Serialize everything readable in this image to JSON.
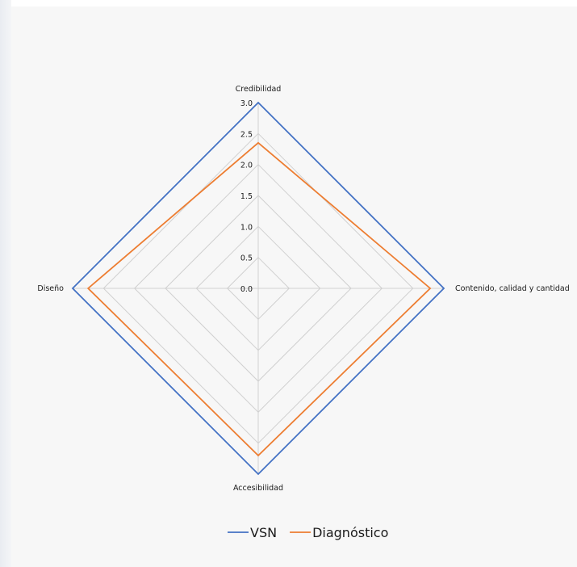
{
  "chart_data": {
    "type": "radar",
    "title": "",
    "axes": [
      "Credibilidad",
      "Contenido, calidad y cantidad",
      "Accesibilidad",
      "Diseño"
    ],
    "ticks": [
      "0.0",
      "0.5",
      "1.0",
      "1.5",
      "2.0",
      "2.5",
      "3.0"
    ],
    "rmin": 0,
    "rmax": 3,
    "grid": true,
    "legend_position": "bottom",
    "series": [
      {
        "name": "VSN",
        "color": "#4472c4",
        "values": [
          3.0,
          3.0,
          3.0,
          3.0
        ]
      },
      {
        "name": "Diagnóstico",
        "color": "#ed7d31",
        "values": [
          2.35,
          2.78,
          2.7,
          2.75
        ]
      }
    ]
  }
}
